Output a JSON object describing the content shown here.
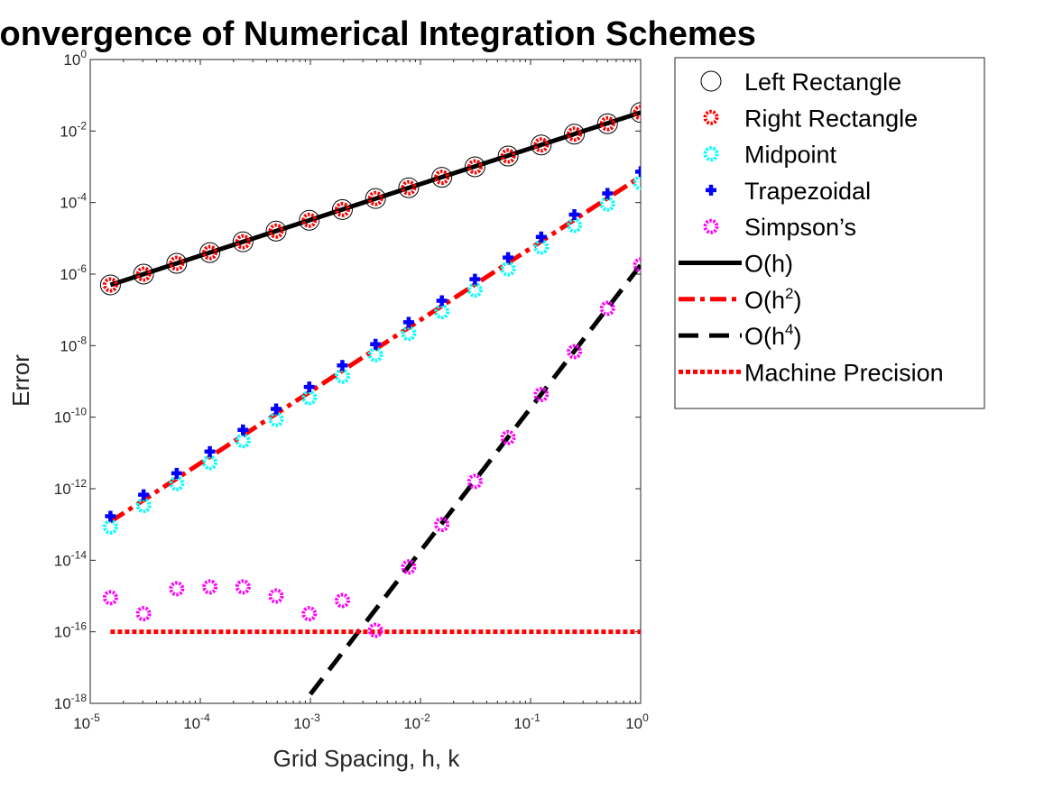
{
  "chart_data": {
    "type": "line",
    "title": "Convergence of Numerical Integration Schemes",
    "xlabel": "Grid Spacing, h, k",
    "ylabel": "Error",
    "xscale": "log",
    "yscale": "log",
    "xlim": [
      1e-05,
      1
    ],
    "ylim": [
      1e-18,
      1
    ],
    "xticks": [
      1e-05,
      0.0001,
      0.001,
      0.01,
      0.1,
      1
    ],
    "yticks": [
      1e-18,
      1e-16,
      1e-14,
      1e-12,
      1e-10,
      1e-08,
      1e-06,
      0.0001,
      0.01,
      1
    ],
    "xtick_labels": [
      {
        "base": "10",
        "exp": "-5"
      },
      {
        "base": "10",
        "exp": "-4"
      },
      {
        "base": "10",
        "exp": "-3"
      },
      {
        "base": "10",
        "exp": "-2"
      },
      {
        "base": "10",
        "exp": "-1"
      },
      {
        "base": "10",
        "exp": "0"
      }
    ],
    "ytick_labels": [
      {
        "base": "10",
        "exp": "-18"
      },
      {
        "base": "10",
        "exp": "-16"
      },
      {
        "base": "10",
        "exp": "-14"
      },
      {
        "base": "10",
        "exp": "-12"
      },
      {
        "base": "10",
        "exp": "-10"
      },
      {
        "base": "10",
        "exp": "-8"
      },
      {
        "base": "10",
        "exp": "-6"
      },
      {
        "base": "10",
        "exp": "-4"
      },
      {
        "base": "10",
        "exp": "-2"
      },
      {
        "base": "10",
        "exp": "0"
      }
    ],
    "grid": false,
    "legend_position": "outside-top-right",
    "x": [
      1.526e-05,
      3.052e-05,
      6.104e-05,
      0.0001221,
      0.0002441,
      0.0004883,
      0.0009766,
      0.001953,
      0.003906,
      0.007813,
      0.01563,
      0.03125,
      0.0625,
      0.125,
      0.25,
      0.5,
      1
    ],
    "series": [
      {
        "name": "Left Rectangle",
        "kind": "markers",
        "marker": "circle-open",
        "color": "#000000",
        "values": [
          5e-07,
          1e-06,
          2e-06,
          4e-06,
          8e-06,
          1.6e-05,
          3.2e-05,
          6.4e-05,
          0.00013,
          0.00026,
          0.00051,
          0.001,
          0.002,
          0.0041,
          0.0082,
          0.016,
          0.033
        ]
      },
      {
        "name": "Right Rectangle",
        "kind": "markers",
        "marker": "star-circle",
        "color": "#ff0000",
        "values": [
          5e-07,
          1e-06,
          2e-06,
          4e-06,
          8e-06,
          1.6e-05,
          3.2e-05,
          6.4e-05,
          0.00013,
          0.00026,
          0.00051,
          0.001,
          0.002,
          0.0041,
          0.0082,
          0.016,
          0.033
        ]
      },
      {
        "name": "Midpoint",
        "kind": "markers",
        "marker": "star-circle",
        "color": "#00ffff",
        "values": [
          8.5e-14,
          3.4e-13,
          1.4e-12,
          5.4e-12,
          2.2e-11,
          8.7e-11,
          3.5e-10,
          1.4e-09,
          5.6e-09,
          2.2e-08,
          8.9e-08,
          3.6e-07,
          1.4e-06,
          5.7e-06,
          2.3e-05,
          9.1e-05,
          0.00036
        ]
      },
      {
        "name": "Trapezoidal",
        "kind": "markers",
        "marker": "plus",
        "color": "#0000ff",
        "values": [
          1.7e-13,
          6.8e-13,
          2.7e-12,
          1.1e-11,
          4.4e-11,
          1.7e-10,
          7e-10,
          2.8e-09,
          1.1e-08,
          4.5e-08,
          1.8e-07,
          7.2e-07,
          2.9e-06,
          1.1e-05,
          4.6e-05,
          0.00018,
          0.00073
        ]
      },
      {
        "name": "Simpson’s",
        "kind": "markers",
        "marker": "star-circle",
        "color": "#ff00ff",
        "values": [
          9e-16,
          3.2e-16,
          1.6e-15,
          1.8e-15,
          1.8e-15,
          1e-15,
          3.2e-16,
          7.5e-16,
          1.1e-16,
          6.5e-15,
          1e-13,
          1.6e-12,
          2.7e-11,
          4.3e-10,
          6.8e-09,
          1.1e-07,
          1.8e-06
        ]
      },
      {
        "name": "O(h)",
        "name_base": "O(h)",
        "name_sup": "",
        "kind": "line",
        "style": "solid",
        "color": "#000000",
        "points": [
          [
            1.526e-05,
            5e-07
          ],
          [
            1,
            0.033
          ]
        ]
      },
      {
        "name": "O(h2)",
        "name_base": "O(h",
        "name_sup": "2",
        "name_tail": ")",
        "kind": "line",
        "style": "dashdot",
        "color": "#ff0000",
        "points": [
          [
            1.526e-05,
            1.2e-13
          ],
          [
            1,
            0.00053
          ]
        ]
      },
      {
        "name": "O(h4)",
        "name_base": "O(h",
        "name_sup": "4",
        "name_tail": ")",
        "kind": "line",
        "style": "dashed",
        "color": "#000000",
        "points": [
          [
            0.001,
            1.8e-18
          ],
          [
            1,
            1.8e-06
          ]
        ]
      },
      {
        "name": "Machine Precision",
        "kind": "line",
        "style": "dotted",
        "color": "#ff0000",
        "points": [
          [
            1.526e-05,
            1e-16
          ],
          [
            1,
            1e-16
          ]
        ]
      }
    ]
  }
}
